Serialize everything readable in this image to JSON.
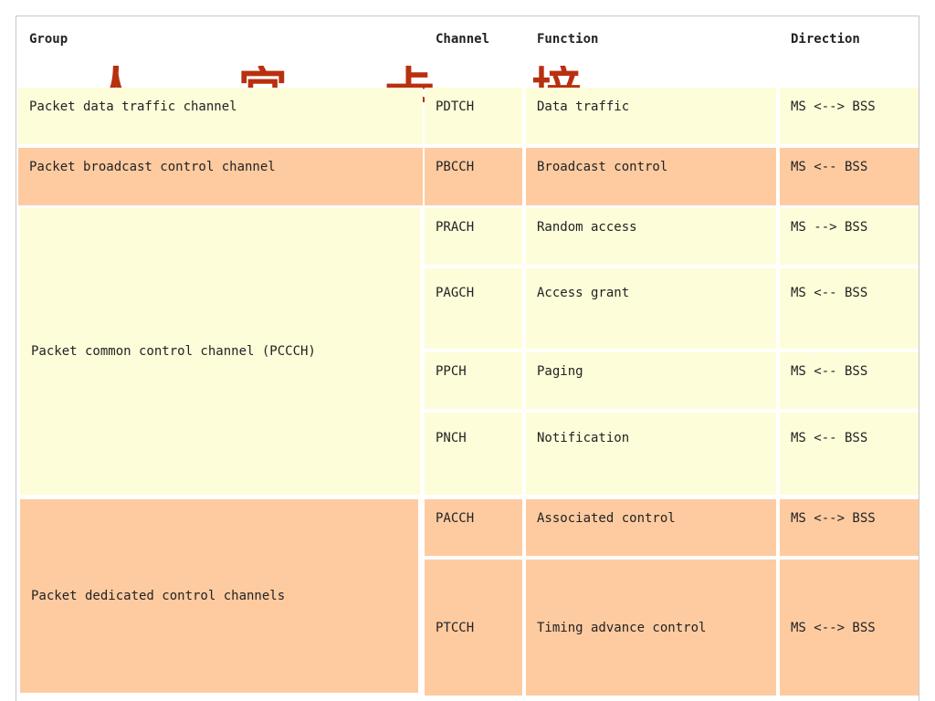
{
  "watermark": "人 宫 卡 培 三 数 理 区",
  "headers": {
    "group": "Group",
    "channel": "Channel",
    "function": "Function",
    "direction": "Direction"
  },
  "groups": {
    "pdtch": "Packet data traffic channel",
    "pbcch": "Packet broadcast control channel",
    "pccch": "Packet common control channel (PCCCH)",
    "pdcch": "Packet dedicated control channels"
  },
  "rows": [
    {
      "channel": "PDTCH",
      "function": "Data traffic",
      "direction": "MS <--> BSS"
    },
    {
      "channel": "PBCCH",
      "function": "Broadcast control",
      "direction": "MS <-- BSS"
    },
    {
      "channel": "PRACH",
      "function": "Random access",
      "direction": "MS --> BSS"
    },
    {
      "channel": "PAGCH",
      "function": "Access grant",
      "direction": "MS <-- BSS"
    },
    {
      "channel": "PPCH",
      "function": "Paging",
      "direction": "MS <-- BSS"
    },
    {
      "channel": "PNCH",
      "function": "Notification",
      "direction": "MS <-- BSS"
    },
    {
      "channel": "PACCH",
      "function": "Associated control",
      "direction": "MS <--> BSS"
    },
    {
      "channel": "PTCCH",
      "function": "Timing advance control",
      "direction": "MS <--> BSS"
    }
  ],
  "colors": {
    "yellow_row": "#fdfdda",
    "orange_row": "#fecba1",
    "watermark": "#b8300f"
  }
}
